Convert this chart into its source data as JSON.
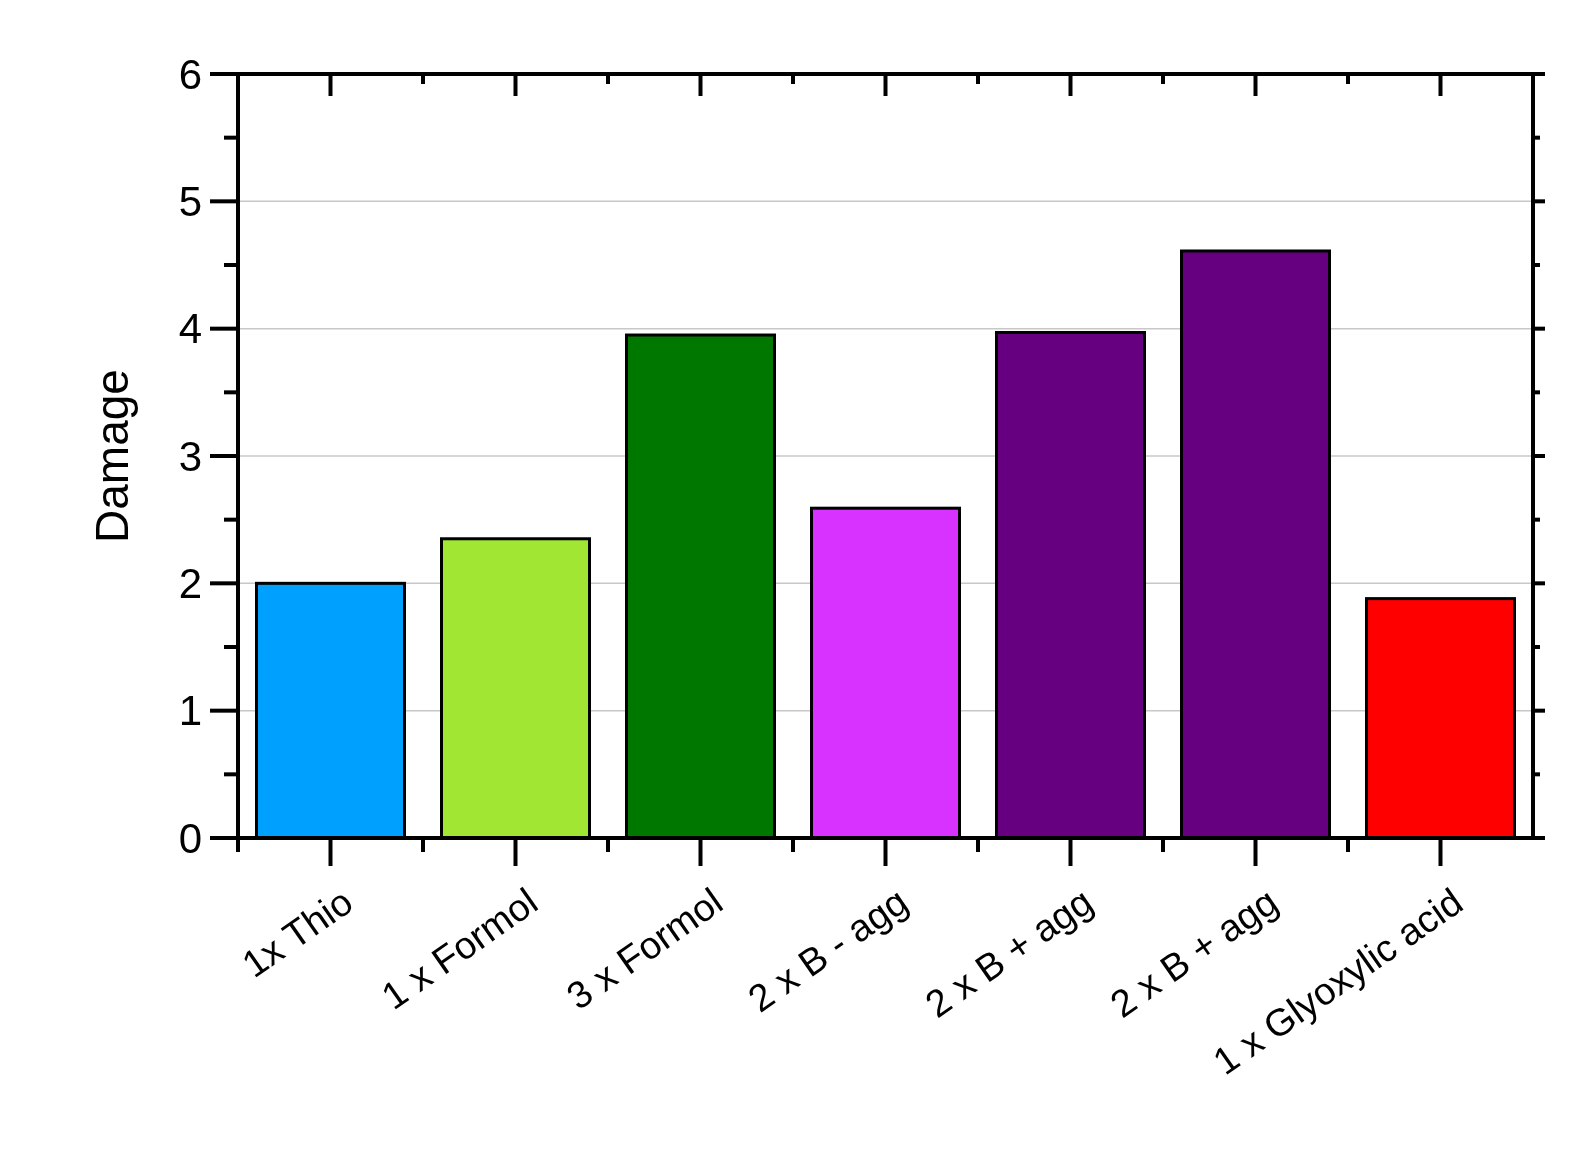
{
  "chart_data": {
    "type": "bar",
    "ylabel": "Damage",
    "categories": [
      "1x Thio",
      "1 x Formol",
      "3 x Formol",
      "2 x B - agg",
      "2 x B + agg",
      "2 x B + agg",
      "1 x Glyoxylic acid"
    ],
    "values": [
      2.0,
      2.35,
      3.95,
      2.59,
      3.97,
      4.61,
      1.88
    ],
    "colors": [
      "#00a0ff",
      "#a0e632",
      "#007800",
      "#d732ff",
      "#660080",
      "#660080",
      "#ff0000"
    ],
    "ylim": [
      0,
      6
    ],
    "yticks": [
      0,
      1,
      2,
      3,
      4,
      5,
      6
    ],
    "grid": "y"
  }
}
